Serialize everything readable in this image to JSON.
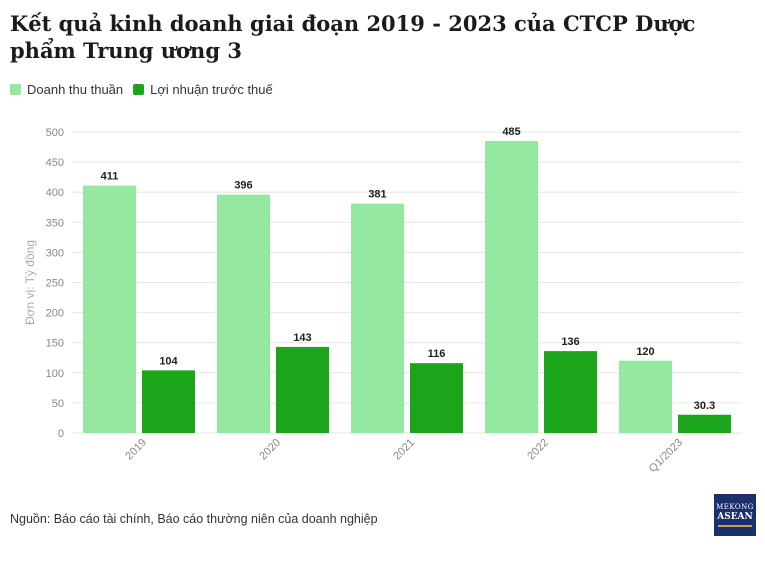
{
  "title": "Kết quả kinh doanh giai đoạn 2019 - 2023 của CTCP Dược phẩm Trung ương 3",
  "source": "Nguồn: Báo cáo tài chính, Báo cáo thường niên của doanh nghiệp",
  "logo": {
    "line1": "MEKONG",
    "line2": "ASEAN"
  },
  "colors": {
    "revenue": "#95e89f",
    "profit": "#1aa51a",
    "grid": "#e6e6e6",
    "axis_text": "#888888"
  },
  "chart_data": {
    "type": "bar",
    "categories": [
      "2019",
      "2020",
      "2021",
      "2022",
      "Q1/2023"
    ],
    "series": [
      {
        "name": "Doanh thu thuần",
        "values": [
          411,
          396,
          381,
          485,
          120
        ],
        "labels": [
          "411",
          "396",
          "381",
          "485",
          "120"
        ]
      },
      {
        "name": "Lợi nhuận trước thuế",
        "values": [
          104,
          143,
          116,
          136,
          30.3
        ],
        "labels": [
          "104",
          "143",
          "116",
          "136",
          "30.3"
        ]
      }
    ],
    "ylabel": "Đơn vị: Tỷ đồng",
    "ylim": [
      0,
      500
    ],
    "yticks": [
      0,
      50,
      100,
      150,
      200,
      250,
      300,
      350,
      400,
      450,
      500
    ],
    "grid": true,
    "legend_position": "top-left"
  }
}
